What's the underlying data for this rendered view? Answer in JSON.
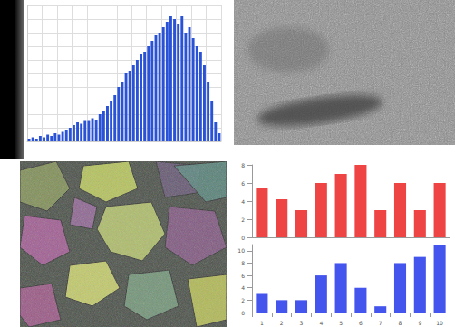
{
  "chart_data": [
    {
      "type": "histogram",
      "bins": [
        0,
        1,
        2,
        3,
        4,
        5,
        6,
        7,
        8,
        9,
        10,
        11,
        12,
        13,
        14,
        15,
        16,
        17,
        18,
        19,
        20,
        21,
        22,
        23,
        24,
        25,
        26,
        27,
        28,
        29,
        30,
        31,
        32,
        33,
        34,
        35,
        36,
        37,
        38,
        39,
        40,
        41,
        42,
        43,
        44,
        45,
        46,
        47,
        48,
        49,
        50,
        51,
        52
      ],
      "counts": [
        2,
        3,
        2,
        4,
        3,
        5,
        4,
        6,
        5,
        7,
        8,
        10,
        12,
        14,
        13,
        15,
        15,
        17,
        16,
        20,
        22,
        26,
        30,
        34,
        40,
        44,
        50,
        52,
        56,
        60,
        64,
        66,
        70,
        74,
        78,
        80,
        84,
        88,
        92,
        90,
        86,
        92,
        80,
        84,
        76,
        70,
        66,
        56,
        44,
        30,
        14,
        6
      ],
      "color": "#2a52d6",
      "xlim": [
        0,
        52
      ],
      "xticks": [
        0,
        4,
        8,
        12,
        16,
        20,
        24,
        28,
        32,
        36,
        40,
        44,
        48,
        52
      ],
      "ylim": [
        0,
        100
      ],
      "yticks": [
        0,
        10,
        20,
        30,
        40,
        50,
        60,
        70,
        80,
        90,
        100
      ],
      "grid": true,
      "tick_labels": false
    },
    {
      "type": "bar",
      "categories": [
        null,
        null,
        null,
        null,
        null,
        null,
        null,
        null,
        null,
        null
      ],
      "values": [
        5.5,
        4.2,
        3,
        6,
        7,
        8,
        3,
        6,
        3,
        6
      ],
      "color": "#ee4444",
      "ylim": [
        0,
        8
      ],
      "yticks": [
        0,
        2,
        4,
        6,
        8
      ],
      "grid": false,
      "tick_labels": "y"
    },
    {
      "type": "bar",
      "categories": [
        "1",
        "2",
        "3",
        "4",
        "5",
        "6",
        "7",
        "8",
        "9",
        "10"
      ],
      "values": [
        3,
        2,
        2,
        6,
        8,
        4,
        1,
        8,
        9,
        11
      ],
      "color": "#4455ee",
      "ylim": [
        0,
        11
      ],
      "yticks": [
        0,
        2,
        4,
        6,
        8,
        10
      ],
      "grid": false,
      "tick_labels": true
    }
  ]
}
